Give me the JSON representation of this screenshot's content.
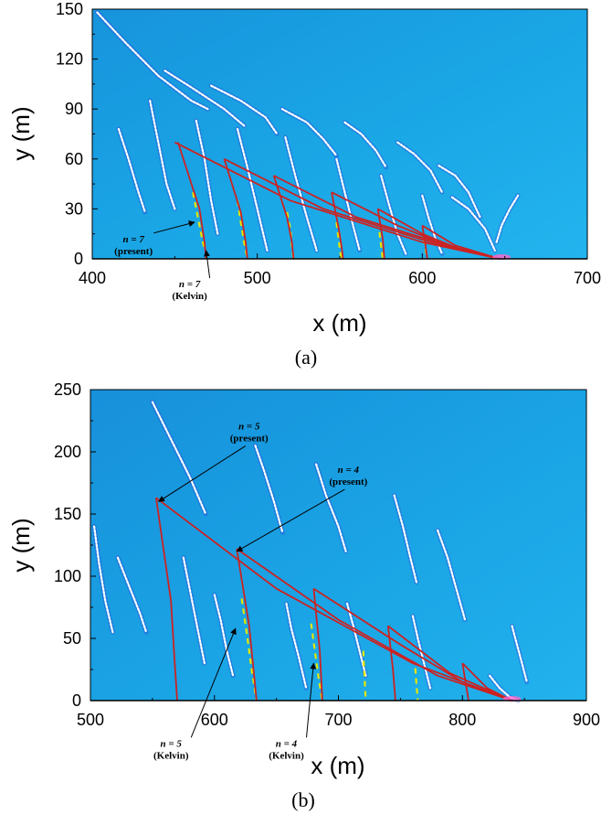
{
  "chart_data": [
    {
      "type": "line",
      "caption": "(a)",
      "xlabel": "x (m)",
      "ylabel": "y (m)",
      "xlim": [
        400,
        700
      ],
      "ylim": [
        0,
        150
      ],
      "xticks": [
        "400",
        "500",
        "600",
        "700"
      ],
      "yticks": [
        "0",
        "30",
        "60",
        "90",
        "120",
        "150"
      ],
      "colors": {
        "background": "#1aa7e6",
        "present": "#cc2222",
        "kelvin": "#e6e600",
        "crest": "#ffffff"
      },
      "apex": [
        648,
        0
      ],
      "annotations": [
        {
          "line1": "n = 7",
          "line2": "(present)",
          "x": 425,
          "y": 10,
          "target": [
            462,
            22
          ]
        },
        {
          "line1": "n = 7",
          "line2": "(Kelvin)",
          "x": 459,
          "y": -17,
          "target": [
            469,
            5
          ]
        }
      ],
      "series": [
        {
          "name": "present",
          "lines": [
            {
              "x": [
                452,
                465,
                468,
                469
              ],
              "y": [
                70,
                30,
                10,
                0
              ]
            },
            {
              "x": [
                450,
                520,
                600,
                647
              ],
              "y": [
                70,
                35,
                10,
                0
              ]
            },
            {
              "x": [
                480,
                490,
                493,
                494
              ],
              "y": [
                60,
                28,
                10,
                0
              ]
            },
            {
              "x": [
                480,
                540,
                605,
                647
              ],
              "y": [
                60,
                30,
                10,
                0
              ]
            },
            {
              "x": [
                510,
                518,
                521,
                522
              ],
              "y": [
                50,
                25,
                10,
                0
              ]
            },
            {
              "x": [
                510,
                560,
                615,
                647
              ],
              "y": [
                50,
                25,
                8,
                0
              ]
            },
            {
              "x": [
                545,
                549,
                551,
                552
              ],
              "y": [
                40,
                20,
                8,
                0
              ]
            },
            {
              "x": [
                545,
                585,
                620,
                647
              ],
              "y": [
                40,
                20,
                6,
                0
              ]
            },
            {
              "x": [
                573,
                576,
                577
              ],
              "y": [
                30,
                12,
                0
              ]
            },
            {
              "x": [
                573,
                600,
                625,
                647
              ],
              "y": [
                30,
                15,
                5,
                0
              ]
            },
            {
              "x": [
                600,
                602,
                603
              ],
              "y": [
                20,
                8,
                0
              ]
            },
            {
              "x": [
                600,
                620,
                647
              ],
              "y": [
                20,
                8,
                0
              ]
            }
          ]
        },
        {
          "name": "Kelvin",
          "lines": [
            {
              "x": [
                461,
                464,
                467,
                470
              ],
              "y": [
                40,
                25,
                10,
                0
              ]
            },
            {
              "x": [
                488,
                490,
                492,
                494
              ],
              "y": [
                35,
                22,
                10,
                0
              ]
            },
            {
              "x": [
                518,
                520,
                521,
                522
              ],
              "y": [
                28,
                18,
                8,
                0
              ]
            },
            {
              "x": [
                548,
                549,
                550,
                551
              ],
              "y": [
                22,
                14,
                6,
                0
              ]
            },
            {
              "x": [
                574,
                575,
                576
              ],
              "y": [
                16,
                8,
                0
              ]
            },
            {
              "x": [
                601,
                602,
                603
              ],
              "y": [
                12,
                6,
                0
              ]
            }
          ]
        },
        {
          "name": "crest",
          "lines": [
            {
              "x": [
                403,
                420,
                440,
                460,
                470
              ],
              "y": [
                148,
                130,
                110,
                95,
                90
              ]
            },
            {
              "x": [
                444,
                460,
                480,
                492
              ],
              "y": [
                113,
                103,
                90,
                80
              ]
            },
            {
              "x": [
                472,
                490,
                505,
                512
              ],
              "y": [
                104,
                95,
                85,
                75
              ]
            },
            {
              "x": [
                515,
                530,
                540,
                548
              ],
              "y": [
                90,
                82,
                72,
                62
              ]
            },
            {
              "x": [
                553,
                563,
                572,
                578
              ],
              "y": [
                82,
                75,
                65,
                55
              ]
            },
            {
              "x": [
                585,
                595,
                605,
                612
              ],
              "y": [
                70,
                63,
                53,
                40
              ]
            },
            {
              "x": [
                610,
                620,
                628,
                635
              ],
              "y": [
                56,
                50,
                40,
                25
              ]
            },
            {
              "x": [
                618,
                628,
                638,
                644
              ],
              "y": [
                37,
                30,
                18,
                5
              ]
            },
            {
              "x": [
                416,
                422,
                428,
                432
              ],
              "y": [
                78,
                60,
                40,
                28
              ]
            },
            {
              "x": [
                435,
                440,
                445,
                450
              ],
              "y": [
                95,
                70,
                45,
                30
              ]
            },
            {
              "x": [
                463,
                468,
                472,
                476
              ],
              "y": [
                83,
                60,
                35,
                15
              ]
            },
            {
              "x": [
                488,
                494,
                500,
                506
              ],
              "y": [
                78,
                55,
                30,
                5
              ]
            },
            {
              "x": [
                517,
                523,
                530,
                536
              ],
              "y": [
                73,
                50,
                25,
                5
              ]
            },
            {
              "x": [
                548,
                553,
                558,
                562
              ],
              "y": [
                60,
                40,
                20,
                5
              ]
            },
            {
              "x": [
                575,
                580,
                585,
                590
              ],
              "y": [
                50,
                32,
                15,
                3
              ]
            },
            {
              "x": [
                600,
                604,
                608,
                612
              ],
              "y": [
                38,
                24,
                12,
                3
              ]
            },
            {
              "x": [
                645,
                648,
                653,
                658
              ],
              "y": [
                10,
                20,
                30,
                38
              ]
            }
          ]
        }
      ]
    },
    {
      "type": "line",
      "caption": "(b)",
      "xlabel": "x (m)",
      "ylabel": "y (m)",
      "xlim": [
        500,
        900
      ],
      "ylim": [
        0,
        250
      ],
      "xticks": [
        "500",
        "600",
        "700",
        "800",
        "900"
      ],
      "yticks": [
        "0",
        "50",
        "100",
        "150",
        "200",
        "250"
      ],
      "colors": {
        "background": "#1aa7e6",
        "present": "#cc2222",
        "kelvin": "#e6e600",
        "crest": "#ffffff"
      },
      "apex": [
        840,
        0
      ],
      "annotations": [
        {
          "line1": "n = 5",
          "line2": "(present)",
          "x": 628,
          "y": 218,
          "target": [
            555,
            160
          ]
        },
        {
          "line1": "n = 4",
          "line2": "(present)",
          "x": 708,
          "y": 183,
          "target": [
            618,
            120
          ]
        },
        {
          "line1": "n = 5",
          "line2": "(Kelvin)",
          "x": 565,
          "y": -37,
          "target": [
            617,
            58
          ]
        },
        {
          "line1": "n = 4",
          "line2": "(Kelvin)",
          "x": 658,
          "y": -37,
          "target": [
            680,
            30
          ]
        }
      ],
      "series": [
        {
          "name": "present",
          "lines": [
            {
              "x": [
                553,
                565,
                568,
                570
              ],
              "y": [
                163,
                80,
                30,
                0
              ]
            },
            {
              "x": [
                553,
                650,
                760,
                840
              ],
              "y": [
                163,
                90,
                30,
                0
              ]
            },
            {
              "x": [
                618,
                628,
                632,
                634
              ],
              "y": [
                122,
                60,
                20,
                0
              ]
            },
            {
              "x": [
                618,
                700,
                780,
                840
              ],
              "y": [
                122,
                65,
                20,
                0
              ]
            },
            {
              "x": [
                680,
                685,
                687
              ],
              "y": [
                90,
                40,
                0
              ]
            },
            {
              "x": [
                680,
                750,
                800,
                840
              ],
              "y": [
                90,
                45,
                15,
                0
              ]
            },
            {
              "x": [
                740,
                744,
                746
              ],
              "y": [
                60,
                25,
                0
              ]
            },
            {
              "x": [
                740,
                790,
                840
              ],
              "y": [
                60,
                22,
                0
              ]
            },
            {
              "x": [
                800,
                803,
                805
              ],
              "y": [
                30,
                12,
                0
              ]
            },
            {
              "x": [
                800,
                820,
                840
              ],
              "y": [
                30,
                10,
                0
              ]
            }
          ]
        },
        {
          "name": "Kelvin",
          "lines": [
            {
              "x": [
                622,
                626,
                630,
                634
              ],
              "y": [
                82,
                55,
                25,
                0
              ]
            },
            {
              "x": [
                678,
                681,
                684,
                687
              ],
              "y": [
                62,
                40,
                18,
                0
              ]
            },
            {
              "x": [
                720,
                721,
                722
              ],
              "y": [
                40,
                20,
                0
              ]
            },
            {
              "x": [
                762,
                763,
                764
              ],
              "y": [
                26,
                12,
                0
              ]
            }
          ]
        },
        {
          "name": "crest",
          "lines": [
            {
              "x": [
                550,
                565,
                580,
                593
              ],
              "y": [
                240,
                210,
                180,
                150
              ]
            },
            {
              "x": [
                633,
                640,
                648,
                655
              ],
              "y": [
                205,
                185,
                160,
                135
              ]
            },
            {
              "x": [
                682,
                690,
                700,
                706
              ],
              "y": [
                190,
                165,
                140,
                120
              ]
            },
            {
              "x": [
                745,
                752,
                758,
                763
              ],
              "y": [
                165,
                140,
                115,
                95
              ]
            },
            {
              "x": [
                780,
                788,
                795,
                802
              ],
              "y": [
                137,
                115,
                90,
                65
              ]
            },
            {
              "x": [
                840,
                844,
                848,
                852
              ],
              "y": [
                60,
                45,
                30,
                15
              ]
            },
            {
              "x": [
                503,
                507,
                512,
                518
              ],
              "y": [
                140,
                110,
                80,
                55
              ]
            },
            {
              "x": [
                522,
                530,
                540,
                545
              ],
              "y": [
                115,
                95,
                70,
                55
              ]
            },
            {
              "x": [
                575,
                580,
                586,
                592
              ],
              "y": [
                115,
                90,
                60,
                30
              ]
            },
            {
              "x": [
                600,
                605,
                610,
                615
              ],
              "y": [
                85,
                65,
                40,
                20
              ]
            },
            {
              "x": [
                658,
                662,
                668,
                674
              ],
              "y": [
                78,
                58,
                35,
                10
              ]
            },
            {
              "x": [
                707,
                712,
                717,
                722
              ],
              "y": [
                78,
                60,
                40,
                20
              ]
            },
            {
              "x": [
                760,
                764,
                769,
                774
              ],
              "y": [
                68,
                50,
                30,
                10
              ]
            },
            {
              "x": [
                822,
                830,
                838,
                845
              ],
              "y": [
                20,
                10,
                3,
                0
              ]
            }
          ]
        }
      ]
    }
  ]
}
